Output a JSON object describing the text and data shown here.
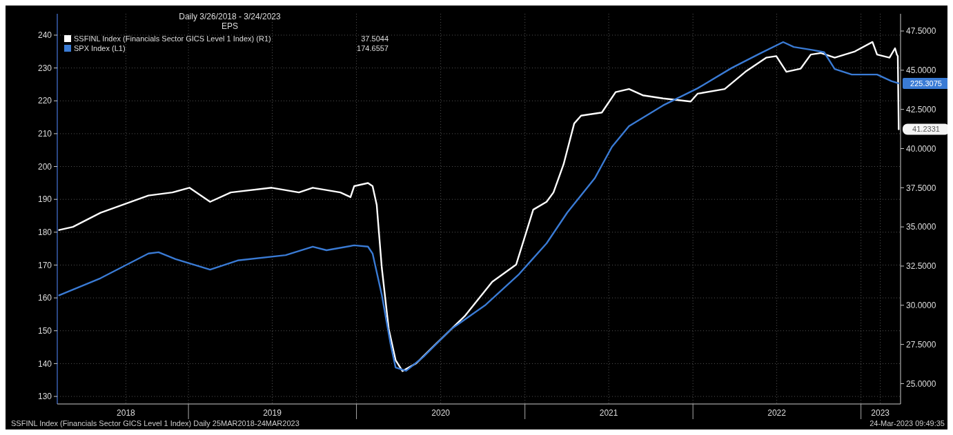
{
  "chart_data": {
    "type": "line",
    "title": "Daily 3/26/2018 - 3/24/2023",
    "subtitle": "EPS",
    "xlim": [
      "2018-03-22",
      "2023-03-28"
    ],
    "xticks": [
      {
        "value": "2018-08-18",
        "label": "2018"
      },
      {
        "value": "2019-01-01",
        "label": null
      },
      {
        "value": "2019-07-02",
        "label": "2019"
      },
      {
        "value": "2020-01-01",
        "label": null
      },
      {
        "value": "2020-07-02",
        "label": "2020"
      },
      {
        "value": "2021-01-01",
        "label": null
      },
      {
        "value": "2021-07-02",
        "label": "2021"
      },
      {
        "value": "2022-01-01",
        "label": null
      },
      {
        "value": "2022-07-02",
        "label": "2022"
      },
      {
        "value": "2023-01-01",
        "label": null
      },
      {
        "value": "2023-02-12",
        "label": "2023"
      }
    ],
    "ylim": [
      127.7,
      246.5
    ],
    "yticks": [
      130,
      140,
      150,
      160,
      170,
      180,
      190,
      200,
      210,
      220,
      230,
      240
    ],
    "y2lim": [
      23.7,
      48.6
    ],
    "y2ticks": [
      {
        "value": 25,
        "label": "25.0000"
      },
      {
        "value": 27.5,
        "label": "27.5000"
      },
      {
        "value": 30,
        "label": "30.0000"
      },
      {
        "value": 32.5,
        "label": "32.5000"
      },
      {
        "value": 35,
        "label": "35.0000"
      },
      {
        "value": 37.5,
        "label": "37.5000"
      },
      {
        "value": 40,
        "label": "40.0000"
      },
      {
        "value": 42.5,
        "label": "42.5000"
      },
      {
        "value": 45,
        "label": "45.0000"
      },
      {
        "value": 47.5,
        "label": "47.5000"
      }
    ],
    "grid": true,
    "legend": "top left",
    "line_style": "solid",
    "marker": "none",
    "annotations": [
      "37.5044",
      "174.6557",
      "SSFINL Index (Financials Sector GICS Level 1 Index) Daily 25MAR2018-24MAR2023",
      "24-Mar-2023 09:49:35"
    ],
    "series": [
      {
        "name": "SSFINL Index (Financials Sector GICS Level 1 Index) (R1)",
        "color": "#ffffff",
        "axis": "y2",
        "x": [
          "2018-03-26",
          "2018-04-25",
          "2018-06-24",
          "2018-10-06",
          "2018-11-27",
          "2019-01-03",
          "2019-02-17",
          "2019-04-03",
          "2019-07-01",
          "2019-08-29",
          "2019-09-28",
          "2019-11-27",
          "2019-12-19",
          "2019-12-27",
          "2020-01-26",
          "2020-02-05",
          "2020-02-14",
          "2020-02-25",
          "2020-03-11",
          "2020-03-26",
          "2020-04-10",
          "2020-05-10",
          "2020-06-24",
          "2020-08-23",
          "2020-10-22",
          "2020-12-13",
          "2021-01-19",
          "2021-02-17",
          "2021-03-04",
          "2021-03-26",
          "2021-04-18",
          "2021-05-03",
          "2021-06-17",
          "2021-07-17",
          "2021-08-15",
          "2021-09-14",
          "2021-10-28",
          "2021-12-27",
          "2022-01-11",
          "2022-03-11",
          "2022-04-25",
          "2022-06-09",
          "2022-07-01",
          "2022-07-23",
          "2022-08-23",
          "2022-09-14",
          "2022-10-06",
          "2022-11-05",
          "2022-12-19",
          "2023-01-26",
          "2023-02-05",
          "2023-03-04",
          "2023-03-16",
          "2023-03-20",
          "2023-03-22",
          "2023-03-24"
        ],
        "values": [
          34.8,
          35.0,
          35.9,
          37.0,
          37.2,
          37.5,
          36.6,
          37.2,
          37.5,
          37.2,
          37.5,
          37.2,
          36.9,
          37.6,
          37.8,
          37.6,
          36.4,
          32.4,
          28.5,
          26.5,
          25.8,
          26.3,
          27.6,
          29.3,
          31.5,
          32.6,
          36.1,
          36.6,
          37.2,
          39.0,
          41.6,
          42.1,
          42.3,
          43.6,
          43.8,
          43.4,
          43.2,
          43.0,
          43.5,
          43.8,
          44.9,
          45.8,
          45.9,
          44.9,
          45.1,
          46.0,
          46.1,
          45.8,
          46.2,
          46.8,
          46.0,
          45.8,
          46.4,
          46.0,
          45.9,
          41.2331
        ],
        "value_labels": [
          null,
          null,
          null,
          null,
          null,
          null,
          null,
          null,
          null,
          null,
          null,
          null,
          null,
          null,
          null,
          null,
          null,
          null,
          null,
          null,
          null,
          null,
          null,
          null,
          null,
          null,
          null,
          null,
          null,
          null,
          null,
          null,
          null,
          null,
          null,
          null,
          null,
          null,
          null,
          null,
          null,
          null,
          null,
          null,
          null,
          null,
          null,
          null,
          null,
          null,
          null,
          null,
          null,
          null,
          null,
          "41.2331"
        ]
      },
      {
        "name": "SPX Index (L1)",
        "color": "#3a7bd5",
        "axis": "y",
        "x": [
          "2018-03-26",
          "2018-06-24",
          "2018-10-06",
          "2018-10-28",
          "2018-12-04",
          "2019-02-17",
          "2019-04-18",
          "2019-07-31",
          "2019-09-28",
          "2019-10-28",
          "2019-12-27",
          "2020-01-26",
          "2020-02-05",
          "2020-02-25",
          "2020-03-15",
          "2020-03-26",
          "2020-04-18",
          "2020-05-25",
          "2020-07-24",
          "2020-10-06",
          "2020-12-19",
          "2021-02-17",
          "2021-04-03",
          "2021-06-02",
          "2021-07-09",
          "2021-08-15",
          "2021-10-28",
          "2022-01-11",
          "2022-03-26",
          "2022-05-25",
          "2022-07-16",
          "2022-08-08",
          "2022-09-21",
          "2022-10-13",
          "2022-11-05",
          "2022-12-12",
          "2023-02-05",
          "2023-03-08",
          "2023-03-24"
        ],
        "values": [
          160.8,
          166,
          173.5,
          173.9,
          171.8,
          168.6,
          171.4,
          173,
          175.6,
          174.5,
          176,
          175.6,
          173.5,
          160.9,
          146,
          138.8,
          137.8,
          142,
          150.4,
          157.7,
          167.2,
          176.6,
          186,
          196.5,
          206,
          212.3,
          218.6,
          223.8,
          230,
          234.3,
          237.9,
          236.4,
          235.4,
          234.8,
          229.7,
          228,
          228,
          226,
          225.3075
        ],
        "value_labels": [
          null,
          null,
          null,
          null,
          null,
          null,
          null,
          null,
          null,
          null,
          null,
          null,
          null,
          null,
          null,
          null,
          null,
          null,
          null,
          null,
          null,
          null,
          null,
          null,
          null,
          null,
          null,
          null,
          null,
          null,
          null,
          null,
          null,
          null,
          null,
          null,
          null,
          null,
          "225.3075"
        ]
      }
    ]
  }
}
